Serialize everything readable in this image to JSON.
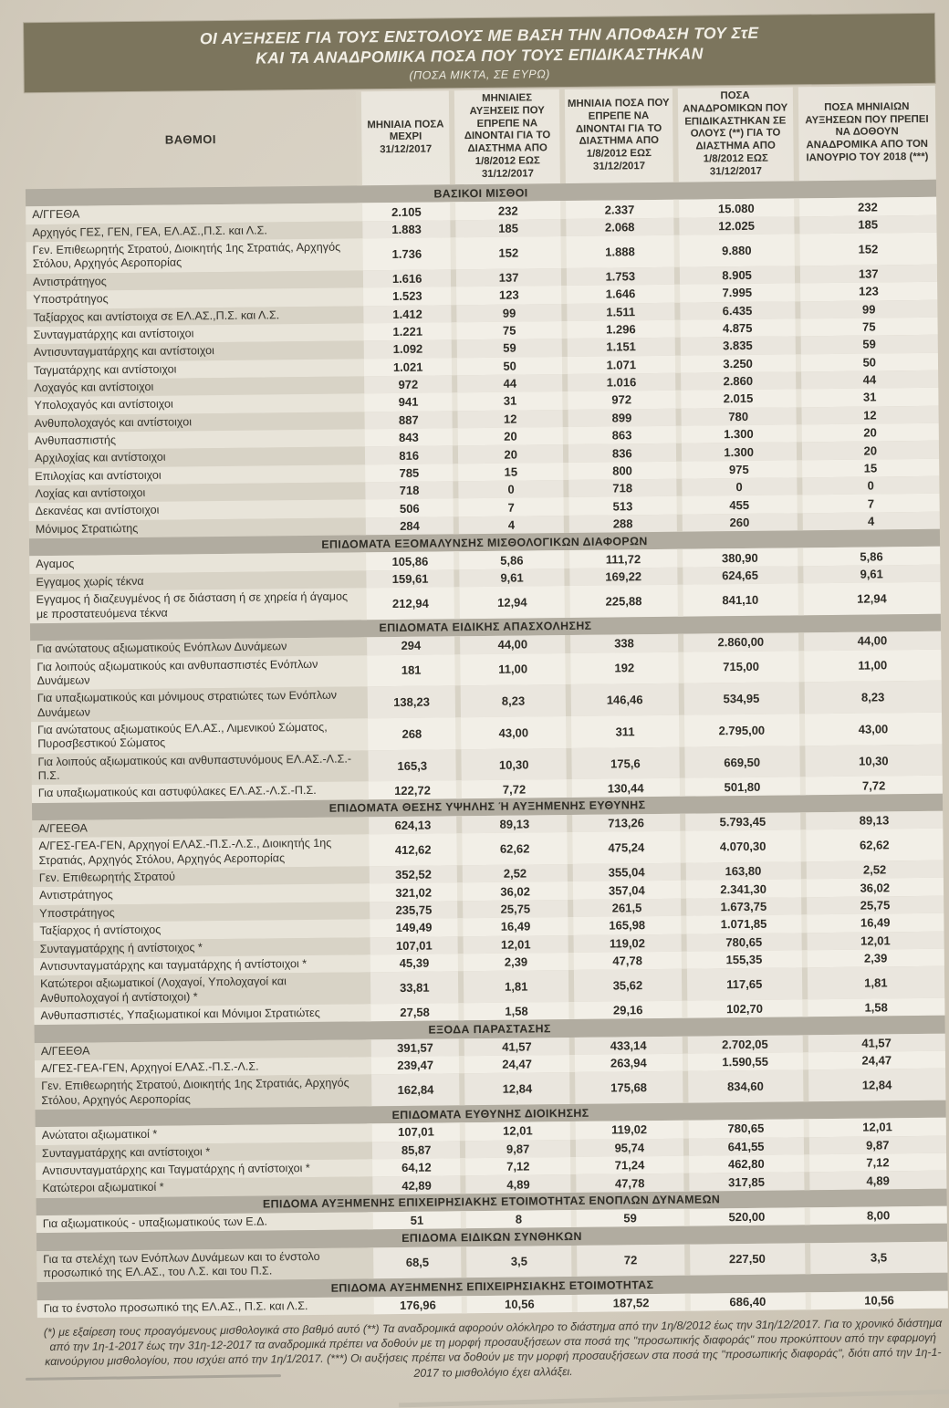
{
  "colors": {
    "title_bar": "#7C755D",
    "title_text": "#F2EFE6",
    "section_bar": "#B1ACA0",
    "paper": "#D8D2C4",
    "row_light": "#E8E4D9",
    "row_dark": "#D8D3C6"
  },
  "title": {
    "line1": "ΟΙ ΑΥΞΗΣΕΙΣ ΓΙΑ ΤΟΥΣ ΕΝΣΤΟΛΟΥΣ ΜΕ ΒΑΣΗ ΤΗΝ ΑΠΟΦΑΣΗ ΤΟΥ ΣτΕ",
    "line2": "ΚΑΙ ΤΑ ΑΝΑΔΡΟΜΙΚΑ ΠΟΣΑ ΠΟΥ ΤΟΥΣ ΕΠΙΔΙΚΑΣΤΗΚΑΝ",
    "subtitle": "(ΠΟΣΑ ΜΙΚΤΑ, ΣΕ ΕΥΡΩ)"
  },
  "table": {
    "columns": [
      "ΒΑΘΜΟΙ",
      "ΜΗΝΙΑΙΑ ΠΟΣΑ ΜΕΧΡΙ 31/12/2017",
      "ΜΗΝΙΑΙΕΣ ΑΥΞΗΣΕΙΣ ΠΟΥ ΕΠΡΕΠΕ ΝΑ ΔΙΝΟΝΤΑΙ ΓΙΑ ΤΟ ΔΙΑΣΤΗΜΑ ΑΠΟ 1/8/2012 ΕΩΣ 31/12/2017",
      "ΜΗΝΙΑΙΑ ΠΟΣΑ ΠΟΥ ΕΠΡΕΠΕ ΝΑ ΔΙΝΟΝΤΑΙ ΓΙΑ ΤΟ ΔΙΑΣΤΗΜΑ ΑΠΟ 1/8/2012 ΕΩΣ 31/12/2017",
      "ΠΟΣΑ ΑΝΑΔΡΟΜΙΚΩΝ ΠΟΥ ΕΠΙΔΙΚΑΣΤΗΚΑΝ ΣΕ ΟΛΟΥΣ (**) ΓΙΑ ΤΟ ΔΙΑΣΤΗΜΑ ΑΠΟ 1/8/2012 ΕΩΣ 31/12/2017",
      "ΠΟΣΑ ΜΗΝΙΑΙΩΝ ΑΥΞΗΣΕΩΝ ΠΟΥ ΠΡΕΠΕΙ ΝΑ ΔΟΘΟΥΝ ΑΝΑΔΡΟΜΙΚΑ ΑΠΟ ΤΟΝ ΙΑΝΟΥΡΙΟ ΤΟΥ 2018 (***)"
    ],
    "sections": [
      {
        "header": "ΒΑΣΙΚΟΙ ΜΙΣΘΟΙ",
        "rows": [
          {
            "label": "Α/ΓΓΕΘΑ",
            "values": [
              "2.105",
              "232",
              "2.337",
              "15.080",
              "232"
            ]
          },
          {
            "label": "Αρχηγός ΓΕΣ, ΓΕΝ, ΓΕΑ, ΕΛ.ΑΣ.,Π.Σ. και Λ.Σ.",
            "values": [
              "1.883",
              "185",
              "2.068",
              "12.025",
              "185"
            ]
          },
          {
            "label": "Γεν. Επιθεωρητής Στρατού, Διοικητής 1ης Στρατιάς, Αρχηγός Στόλου, Αρχηγός Αεροπορίας",
            "values": [
              "1.736",
              "152",
              "1.888",
              "9.880",
              "152"
            ]
          },
          {
            "label": "Αντιστράτηγος",
            "values": [
              "1.616",
              "137",
              "1.753",
              "8.905",
              "137"
            ]
          },
          {
            "label": "Υποστράτηγος",
            "values": [
              "1.523",
              "123",
              "1.646",
              "7.995",
              "123"
            ]
          },
          {
            "label": "Ταξίαρχος και αντίστοιχα σε ΕΛ.ΑΣ.,Π.Σ. και Λ.Σ.",
            "values": [
              "1.412",
              "99",
              "1.511",
              "6.435",
              "99"
            ]
          },
          {
            "label": "Συνταγματάρχης και αντίστοιχοι",
            "values": [
              "1.221",
              "75",
              "1.296",
              "4.875",
              "75"
            ]
          },
          {
            "label": "Αντισυνταγματάρχης και αντίστοιχοι",
            "values": [
              "1.092",
              "59",
              "1.151",
              "3.835",
              "59"
            ]
          },
          {
            "label": "Ταγματάρχης και αντίστοιχοι",
            "values": [
              "1.021",
              "50",
              "1.071",
              "3.250",
              "50"
            ]
          },
          {
            "label": "Λοχαγός και αντίστοιχοι",
            "values": [
              "972",
              "44",
              "1.016",
              "2.860",
              "44"
            ]
          },
          {
            "label": "Υπολοχαγός και αντίστοιχοι",
            "values": [
              "941",
              "31",
              "972",
              "2.015",
              "31"
            ]
          },
          {
            "label": "Ανθυπολοχαγός και αντίστοιχοι",
            "values": [
              "887",
              "12",
              "899",
              "780",
              "12"
            ]
          },
          {
            "label": "Ανθυπασπιστής",
            "values": [
              "843",
              "20",
              "863",
              "1.300",
              "20"
            ]
          },
          {
            "label": "Αρχιλοχίας και αντίστοιχοι",
            "values": [
              "816",
              "20",
              "836",
              "1.300",
              "20"
            ]
          },
          {
            "label": "Επιλοχίας και αντίστοιχοι",
            "values": [
              "785",
              "15",
              "800",
              "975",
              "15"
            ]
          },
          {
            "label": "Λοχίας και αντίστοιχοι",
            "values": [
              "718",
              "0",
              "718",
              "0",
              "0"
            ]
          },
          {
            "label": "Δεκανέας και αντίστοιχοι",
            "values": [
              "506",
              "7",
              "513",
              "455",
              "7"
            ]
          },
          {
            "label": "Μόνιμος Στρατιώτης",
            "values": [
              "284",
              "4",
              "288",
              "260",
              "4"
            ]
          }
        ]
      },
      {
        "header": "ΕΠΙΔΟΜΑΤΑ ΕΞΟΜΑΛΥΝΣΗΣ ΜΙΣΘΟΛΟΓΙΚΩΝ ΔΙΑΦΟΡΩΝ",
        "rows": [
          {
            "label": "Αγαμος",
            "values": [
              "105,86",
              "5,86",
              "111,72",
              "380,90",
              "5,86"
            ]
          },
          {
            "label": "Εγγαμος χωρίς τέκνα",
            "values": [
              "159,61",
              "9,61",
              "169,22",
              "624,65",
              "9,61"
            ]
          },
          {
            "label": "Εγγαμος ή διαζευγμένος ή σε διάσταση ή σε χηρεία ή άγαμος με προστατευόμενα τέκνα",
            "values": [
              "212,94",
              "12,94",
              "225,88",
              "841,10",
              "12,94"
            ]
          }
        ]
      },
      {
        "header": "ΕΠΙΔΟΜΑΤΑ ΕΙΔΙΚΗΣ ΑΠΑΣΧΟΛΗΣΗΣ",
        "rows": [
          {
            "label": "Για ανώτατους αξιωματικούς Ενόπλων Δυνάμεων",
            "values": [
              "294",
              "44,00",
              "338",
              "2.860,00",
              "44,00"
            ]
          },
          {
            "label": "Για λοιπούς αξιωματικούς και ανθυπασπιστές Ενόπλων Δυνάμεων",
            "values": [
              "181",
              "11,00",
              "192",
              "715,00",
              "11,00"
            ]
          },
          {
            "label": "Για υπαξιωματικούς και μόνιμους στρατιώτες των Ενόπλων Δυνάμεων",
            "values": [
              "138,23",
              "8,23",
              "146,46",
              "534,95",
              "8,23"
            ]
          },
          {
            "label": "Για ανώτατους αξιωματικούς ΕΛ.ΑΣ., Λιμενικού Σώματος, Πυροσβεστικού Σώματος",
            "values": [
              "268",
              "43,00",
              "311",
              "2.795,00",
              "43,00"
            ]
          },
          {
            "label": "Για λοιπούς αξιωματικούς και ανθυπαστυνόμους ΕΛ.ΑΣ.-Λ.Σ.-Π.Σ.",
            "values": [
              "165,3",
              "10,30",
              "175,6",
              "669,50",
              "10,30"
            ]
          },
          {
            "label": "Για υπαξιωματικούς και αστυφύλακες ΕΛ.ΑΣ.-Λ.Σ.-Π.Σ.",
            "values": [
              "122,72",
              "7,72",
              "130,44",
              "501,80",
              "7,72"
            ]
          }
        ]
      },
      {
        "header": "ΕΠΙΔΟΜΑΤΑ ΘΕΣΗΣ ΥΨΗΛΗΣ Ή ΑΥΞΗΜΕΝΗΣ ΕΥΘΥΝΗΣ",
        "rows": [
          {
            "label": "Α/ΓΕΕΘΑ",
            "values": [
              "624,13",
              "89,13",
              "713,26",
              "5.793,45",
              "89,13"
            ]
          },
          {
            "label": "Α/ΓΕΣ-ΓΕΑ-ΓΕΝ, Αρχηγοί ΕΛΑΣ.-Π.Σ.-Λ.Σ., Διοικητής 1ης Στρατιάς, Αρχηγός Στόλου, Αρχηγός Αεροπορίας",
            "values": [
              "412,62",
              "62,62",
              "475,24",
              "4.070,30",
              "62,62"
            ]
          },
          {
            "label": "Γεν. Επιθεωρητής Στρατού",
            "values": [
              "352,52",
              "2,52",
              "355,04",
              "163,80",
              "2,52"
            ]
          },
          {
            "label": "Αντιστράτηγος",
            "values": [
              "321,02",
              "36,02",
              "357,04",
              "2.341,30",
              "36,02"
            ]
          },
          {
            "label": "Υποστράτηγος",
            "values": [
              "235,75",
              "25,75",
              "261,5",
              "1.673,75",
              "25,75"
            ]
          },
          {
            "label": "Ταξίαρχος ή αντίστοιχος",
            "values": [
              "149,49",
              "16,49",
              "165,98",
              "1.071,85",
              "16,49"
            ]
          },
          {
            "label": "Συνταγματάρχης ή αντίστοιχος *",
            "values": [
              "107,01",
              "12,01",
              "119,02",
              "780,65",
              "12,01"
            ]
          },
          {
            "label": "Αντισυνταγματάρχης και ταγματάρχης ή αντίστοιχοι *",
            "values": [
              "45,39",
              "2,39",
              "47,78",
              "155,35",
              "2,39"
            ]
          },
          {
            "label": "Κατώτεροι αξιωματικοί (Λοχαγοί, Υπολοχαγοί και Ανθυπολοχαγοί ή αντίστοιχοι) *",
            "values": [
              "33,81",
              "1,81",
              "35,62",
              "117,65",
              "1,81"
            ]
          },
          {
            "label": "Ανθυπασπιστές, Υπαξιωματικοί και Μόνιμοι Στρατιώτες",
            "values": [
              "27,58",
              "1,58",
              "29,16",
              "102,70",
              "1,58"
            ]
          }
        ]
      },
      {
        "header": "ΕΞΟΔΑ ΠΑΡΑΣΤΑΣΗΣ",
        "rows": [
          {
            "label": "Α/ΓΕΕΘΑ",
            "values": [
              "391,57",
              "41,57",
              "433,14",
              "2.702,05",
              "41,57"
            ]
          },
          {
            "label": "Α/ΓΕΣ-ΓΕΑ-ΓΕΝ, Αρχηγοί ΕΛΑΣ.-Π.Σ.-Λ.Σ.",
            "values": [
              "239,47",
              "24,47",
              "263,94",
              "1.590,55",
              "24,47"
            ]
          },
          {
            "label": "Γεν. Επιθεωρητής Στρατού, Διοικητής 1ης Στρατιάς, Αρχηγός Στόλου, Αρχηγός Αεροπορίας",
            "values": [
              "162,84",
              "12,84",
              "175,68",
              "834,60",
              "12,84"
            ]
          }
        ]
      },
      {
        "header": "ΕΠΙΔΟΜΑΤΑ ΕΥΘΥΝΗΣ ΔΙΟΙΚΗΣΗΣ",
        "rows": [
          {
            "label": "Ανώτατοι αξιωματικοί *",
            "values": [
              "107,01",
              "12,01",
              "119,02",
              "780,65",
              "12,01"
            ]
          },
          {
            "label": "Συνταγματάρχης και αντίστοιχοι *",
            "values": [
              "85,87",
              "9,87",
              "95,74",
              "641,55",
              "9,87"
            ]
          },
          {
            "label": "Αντισυνταγματάρχης και Ταγματάρχης ή αντίστοιχοι *",
            "values": [
              "64,12",
              "7,12",
              "71,24",
              "462,80",
              "7,12"
            ]
          },
          {
            "label": "Κατώτεροι αξιωματικοί *",
            "values": [
              "42,89",
              "4,89",
              "47,78",
              "317,85",
              "4,89"
            ]
          }
        ]
      },
      {
        "header": "ΕΠΙΔΟΜΑ ΑΥΞΗΜΕΝΗΣ ΕΠΙΧΕΙΡΗΣΙΑΚΗΣ ΕΤΟΙΜΟΤΗΤΑΣ ΕΝΟΠΛΩΝ ΔΥΝΑΜΕΩΝ",
        "rows": [
          {
            "label": "Για αξιωματικούς - υπαξιωματικούς των Ε.Δ.",
            "values": [
              "51",
              "8",
              "59",
              "520,00",
              "8,00"
            ]
          }
        ]
      },
      {
        "header": "ΕΠΙΔΟΜΑ ΕΙΔΙΚΩΝ ΣΥΝΘΗΚΩΝ",
        "rows": [
          {
            "label": "Για τα στελέχη των Ενόπλων Δυνάμεων και το ένστολο προσωπικό της ΕΛ.ΑΣ., του Λ.Σ. και του Π.Σ.",
            "values": [
              "68,5",
              "3,5",
              "72",
              "227,50",
              "3,5"
            ]
          }
        ]
      },
      {
        "header": "ΕΠΙΔΟΜΑ ΑΥΞΗΜΕΝΗΣ ΕΠΙΧΕΙΡΗΣΙΑΚΗΣ ΕΤΟΙΜΟΤΗΤΑΣ",
        "rows": [
          {
            "label": "Για το ένστολο προσωπικό της ΕΛ.ΑΣ., Π.Σ. και Λ.Σ.",
            "values": [
              "176,96",
              "10,56",
              "187,52",
              "686,40",
              "10,56"
            ]
          }
        ]
      }
    ]
  },
  "footnote": "(*) με εξαίρεση τους προαγόμενους μισθολογικά στο βαθμό αυτό  (**) Τα αναδρομικά αφορούν ολόκληρο το διάστημα από την 1η/8/2012 έως την 31η/12/2017. Για το χρονικό διάστημα από την 1η-1-2017 έως την 31η-12-2017 τα αναδρομικά πρέπει να δοθούν με τη μορφή προσαυξήσεων στα ποσά της \"προσωπικής διαφοράς\" που προκύπτουν από την εφαρμογή καινούργιου μισθολογίου, που ισχύει από την 1η/1/2017. (***) Οι αυξήσεις πρέπει να δοθούν με την μορφή προσαυξήσεων στα ποσά της \"προσωπικής διαφοράς\", διότι από την 1η-1-2017 το μισθολόγιο έχει αλλάξει."
}
